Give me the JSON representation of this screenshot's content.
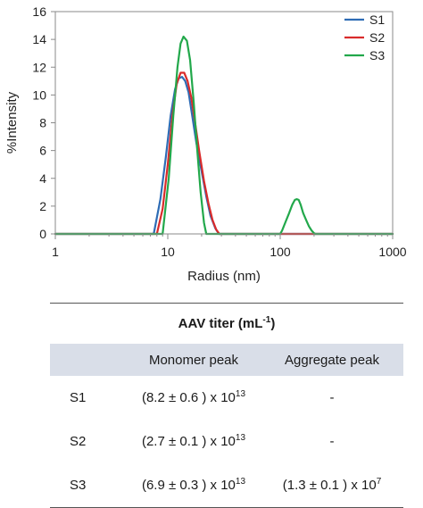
{
  "chart_data": {
    "type": "line",
    "xscale": "log",
    "xlim": [
      1,
      1000
    ],
    "ylim": [
      0,
      16
    ],
    "xlabel": "Radius (nm)",
    "ylabel": "%Intensity",
    "xticks": [
      "1",
      "10",
      "100",
      "1000"
    ],
    "yticks": [
      "0",
      "2",
      "4",
      "6",
      "8",
      "10",
      "12",
      "14",
      "16"
    ],
    "legend_position": "top-right",
    "grid": false,
    "series": [
      {
        "name": "S1",
        "color": "#2e6cb5",
        "x": [
          1,
          7.5,
          8.6,
          9.6,
          10.6,
          11.6,
          12.5,
          13.4,
          14.3,
          15.3,
          16.5,
          18,
          20,
          22,
          24,
          26.5,
          28.5,
          30,
          1000
        ],
        "y": [
          0,
          0,
          2.5,
          5.5,
          8.5,
          10.4,
          11.2,
          11.3,
          11.0,
          10.2,
          8.5,
          6.5,
          4.5,
          2.7,
          1.3,
          0.4,
          0,
          0,
          0
        ]
      },
      {
        "name": "S2",
        "color": "#d92b2b",
        "x": [
          1,
          8.0,
          9.0,
          10.0,
          11.0,
          12.0,
          13.0,
          14.0,
          15.0,
          16.2,
          17.5,
          19,
          21,
          23,
          25,
          27,
          28.8,
          30,
          1000
        ],
        "y": [
          0,
          0,
          1.8,
          5.0,
          8.5,
          10.8,
          11.6,
          11.6,
          11.0,
          9.8,
          8.0,
          6.0,
          3.8,
          2.2,
          1.0,
          0.3,
          0,
          0,
          0
        ]
      },
      {
        "name": "S3",
        "color": "#22a84b",
        "x": [
          1,
          9.0,
          10.2,
          11.2,
          12.2,
          13.0,
          13.8,
          14.8,
          15.8,
          17.0,
          18.3,
          19.6,
          21,
          22,
          100,
          104,
          112,
          120,
          128,
          135,
          140,
          146,
          152,
          160,
          170,
          180,
          190,
          200,
          205,
          1000
        ],
        "y": [
          0,
          0,
          4.0,
          8.5,
          12.0,
          13.7,
          14.2,
          13.9,
          12.5,
          9.5,
          6.0,
          3.0,
          0.8,
          0,
          0,
          0.25,
          0.9,
          1.5,
          2.1,
          2.45,
          2.5,
          2.45,
          2.1,
          1.5,
          1.0,
          0.55,
          0.25,
          0.05,
          0,
          0
        ]
      }
    ]
  },
  "table": {
    "title": "AAV titer (mL",
    "title_sup": "-1",
    "title_close": ")",
    "columns": [
      "Monomer peak",
      "Aggregate peak"
    ],
    "rows": [
      {
        "name": "S1",
        "mono_base": "(8.2 ± 0.6 ) x 10",
        "mono_exp": "13",
        "agg_base": "-",
        "agg_exp": ""
      },
      {
        "name": "S2",
        "mono_base": "(2.7 ± 0.1 ) x 10",
        "mono_exp": "13",
        "agg_base": "-",
        "agg_exp": ""
      },
      {
        "name": "S3",
        "mono_base": "(6.9 ± 0.3 ) x 10",
        "mono_exp": "13",
        "agg_base": "(1.3 ± 0.1 ) x 10",
        "agg_exp": "7"
      }
    ],
    "header_color": "#d9dee8"
  }
}
